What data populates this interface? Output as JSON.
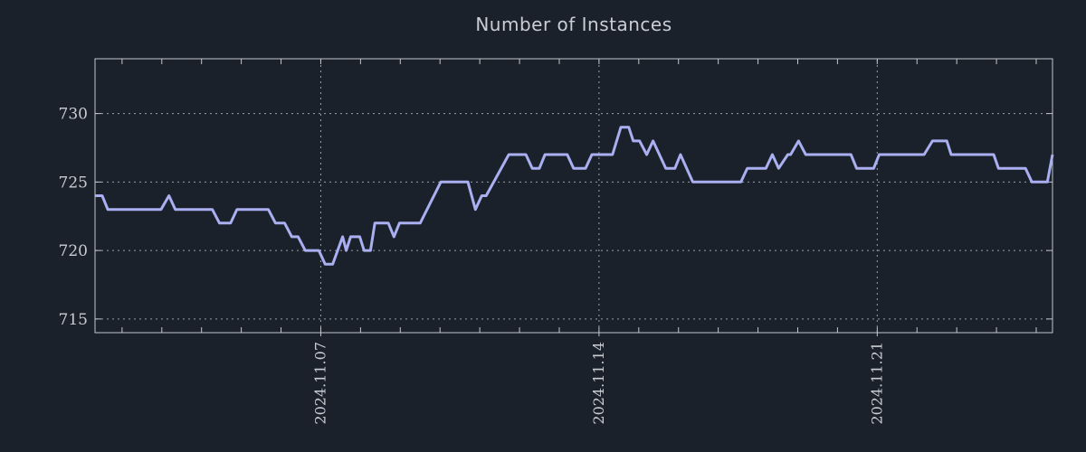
{
  "chart_data": {
    "type": "line",
    "title": "Number of Instances",
    "x_axis": {
      "unit": "days since 2024.11.01 00:00 (derived from visible date ticks)",
      "range_days": [
        0.32,
        24.41
      ],
      "major_ticks": [
        {
          "day": 6,
          "label": "2024.11.07"
        },
        {
          "day": 13,
          "label": "2024.11.14"
        },
        {
          "day": 20,
          "label": "2024.11.21"
        }
      ],
      "minor_tick_days": [
        1,
        2,
        3,
        4,
        5,
        6,
        7,
        8,
        9,
        10,
        11,
        12,
        13,
        14,
        15,
        16,
        17,
        18,
        19,
        20,
        21,
        22,
        23,
        24
      ]
    },
    "y_axis": {
      "range": [
        714,
        734
      ],
      "ticks": [
        {
          "value": 715,
          "label": "715"
        },
        {
          "value": 720,
          "label": "720"
        },
        {
          "value": 725,
          "label": "725"
        },
        {
          "value": 730,
          "label": "730"
        }
      ]
    },
    "grid": {
      "style": "dotted",
      "horizontal": true,
      "vertical": true
    },
    "legend": null,
    "series": [
      {
        "name": "instances",
        "points": [
          [
            0.32,
            724
          ],
          [
            0.5,
            724
          ],
          [
            0.64,
            723
          ],
          [
            1.98,
            723
          ],
          [
            2.18,
            724
          ],
          [
            2.34,
            723
          ],
          [
            3.27,
            723
          ],
          [
            3.45,
            722
          ],
          [
            3.73,
            722
          ],
          [
            3.89,
            723
          ],
          [
            4.68,
            723
          ],
          [
            4.86,
            722
          ],
          [
            5.09,
            722
          ],
          [
            5.27,
            721
          ],
          [
            5.43,
            721
          ],
          [
            5.61,
            720
          ],
          [
            5.95,
            720
          ],
          [
            6.11,
            719
          ],
          [
            6.3,
            719
          ],
          [
            6.55,
            721
          ],
          [
            6.64,
            720
          ],
          [
            6.75,
            721
          ],
          [
            6.98,
            721
          ],
          [
            7.09,
            720
          ],
          [
            7.25,
            720
          ],
          [
            7.36,
            722
          ],
          [
            7.7,
            722
          ],
          [
            7.84,
            721
          ],
          [
            7.98,
            722
          ],
          [
            8.5,
            722
          ],
          [
            9.02,
            725
          ],
          [
            9.7,
            725
          ],
          [
            9.89,
            723
          ],
          [
            10.05,
            724
          ],
          [
            10.16,
            724
          ],
          [
            10.73,
            727
          ],
          [
            11.16,
            727
          ],
          [
            11.32,
            726
          ],
          [
            11.5,
            726
          ],
          [
            11.64,
            727
          ],
          [
            12.2,
            727
          ],
          [
            12.36,
            726
          ],
          [
            12.66,
            726
          ],
          [
            12.82,
            727
          ],
          [
            13.34,
            727
          ],
          [
            13.55,
            729
          ],
          [
            13.75,
            729
          ],
          [
            13.86,
            728
          ],
          [
            14.02,
            728
          ],
          [
            14.2,
            727
          ],
          [
            14.36,
            728
          ],
          [
            14.68,
            726
          ],
          [
            14.91,
            726
          ],
          [
            15.05,
            727
          ],
          [
            15.36,
            725
          ],
          [
            16.57,
            725
          ],
          [
            16.73,
            726
          ],
          [
            17.2,
            726
          ],
          [
            17.36,
            727
          ],
          [
            17.52,
            726
          ],
          [
            17.75,
            727
          ],
          [
            17.82,
            727
          ],
          [
            18.02,
            728
          ],
          [
            18.2,
            727
          ],
          [
            19.34,
            727
          ],
          [
            19.48,
            726
          ],
          [
            19.91,
            726
          ],
          [
            20.05,
            727
          ],
          [
            21.18,
            727
          ],
          [
            21.39,
            728
          ],
          [
            21.75,
            728
          ],
          [
            21.86,
            727
          ],
          [
            22.93,
            727
          ],
          [
            23.05,
            726
          ],
          [
            23.73,
            726
          ],
          [
            23.89,
            725
          ],
          [
            24.28,
            725
          ],
          [
            24.41,
            727
          ]
        ]
      }
    ],
    "colors": {
      "background": "#1a212b",
      "line": "#a9aff0",
      "axis": "#c3c7cd",
      "grid": "#9aa0a7",
      "tick_text": "#c9cdd3",
      "title_text": "#c9ced5"
    }
  }
}
